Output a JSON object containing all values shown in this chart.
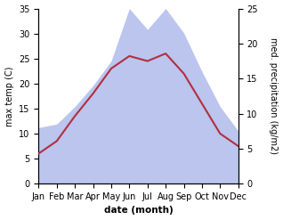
{
  "months": [
    "Jan",
    "Feb",
    "Mar",
    "Apr",
    "May",
    "Jun",
    "Jul",
    "Aug",
    "Sep",
    "Oct",
    "Nov",
    "Dec"
  ],
  "temperature": [
    6.0,
    8.5,
    13.5,
    18.0,
    23.0,
    25.5,
    24.5,
    26.0,
    22.0,
    16.0,
    10.0,
    7.5
  ],
  "precipitation": [
    8.0,
    8.5,
    11.0,
    14.0,
    17.5,
    25.0,
    22.0,
    25.0,
    21.5,
    16.0,
    11.0,
    7.5
  ],
  "temp_color": "#b03040",
  "precip_fill_color": "#bbc5ee",
  "temp_ylim": [
    0,
    35
  ],
  "precip_ylim": [
    0,
    25
  ],
  "temp_yticks": [
    0,
    5,
    10,
    15,
    20,
    25,
    30,
    35
  ],
  "precip_yticks": [
    0,
    5,
    10,
    15,
    20,
    25
  ],
  "xlabel": "date (month)",
  "ylabel_left": "max temp (C)",
  "ylabel_right": "med. precipitation (kg/m2)",
  "label_fontsize": 7,
  "tick_fontsize": 7,
  "xlabel_fontsize": 7.5
}
